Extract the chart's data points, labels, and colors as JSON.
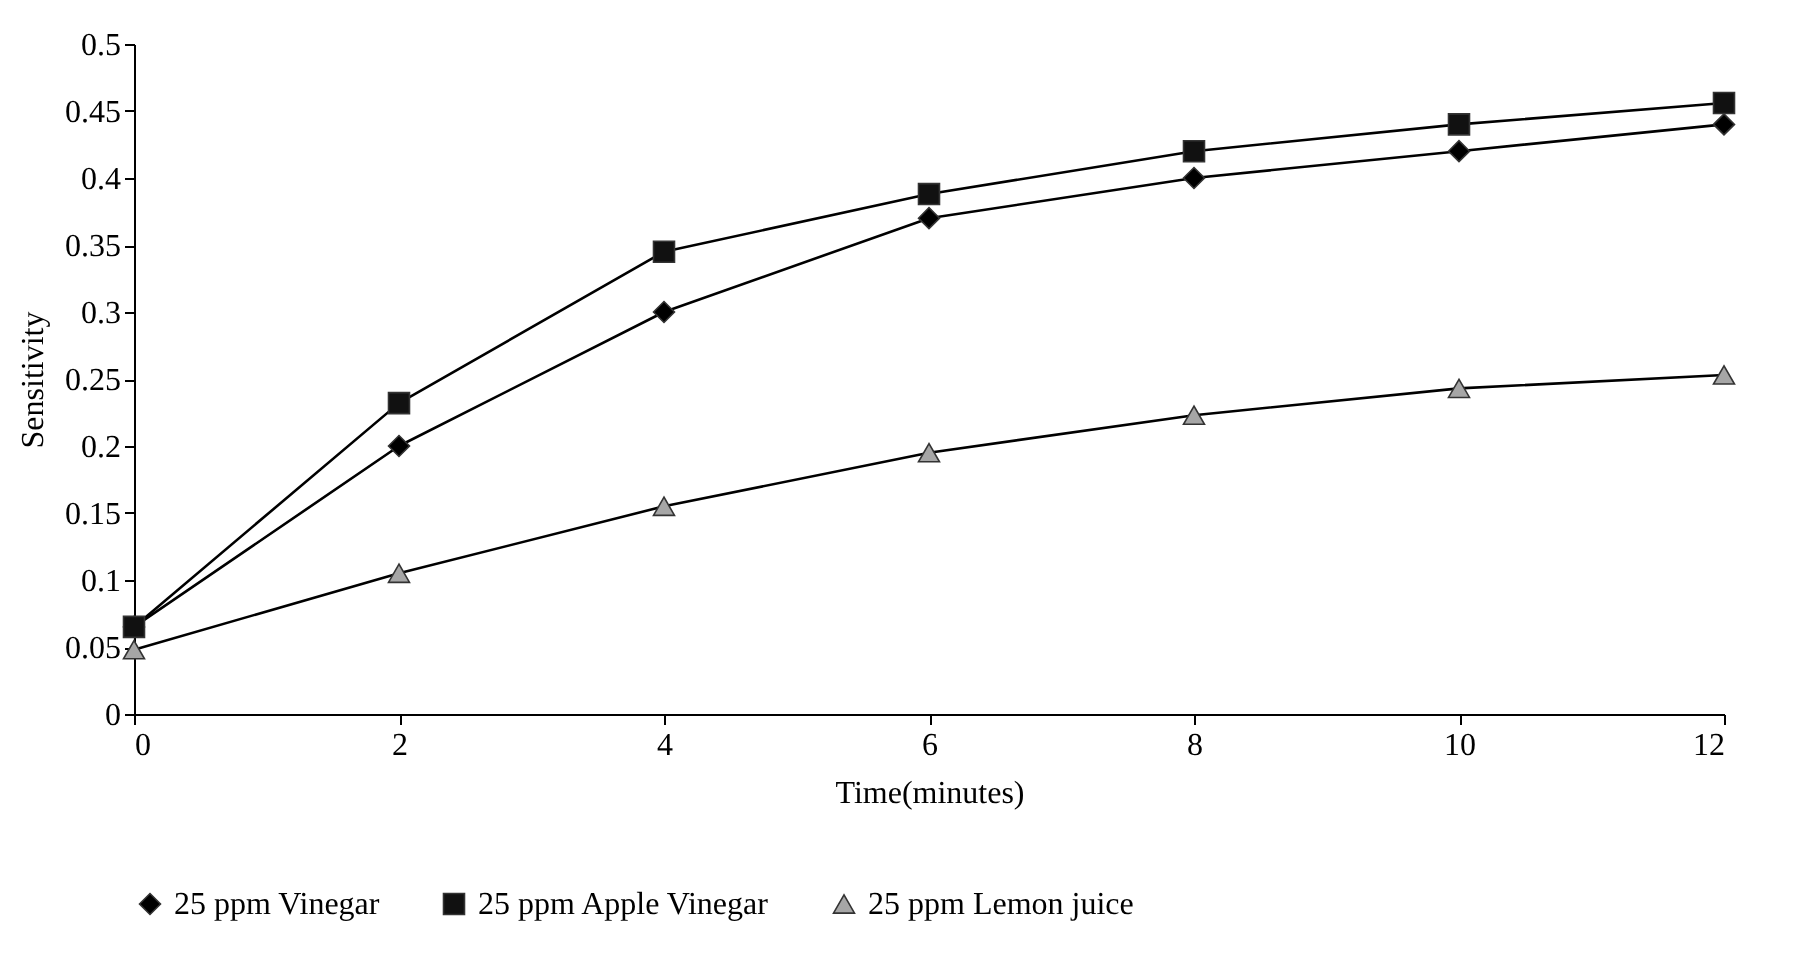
{
  "chart_data": {
    "type": "line",
    "xlabel": "Time(minutes)",
    "ylabel": "Sensitivity",
    "x": [
      0,
      2,
      4,
      6,
      8,
      10,
      12
    ],
    "series": [
      {
        "name": "25 ppm Vinegar",
        "color": "#000000",
        "marker": "diamond",
        "values": [
          0.065,
          0.2,
          0.3,
          0.37,
          0.4,
          0.42,
          0.44
        ]
      },
      {
        "name": "25 ppm Apple Vinegar",
        "color": "#111111",
        "marker": "square",
        "values": [
          0.065,
          0.232,
          0.345,
          0.388,
          0.42,
          0.44,
          0.456
        ]
      },
      {
        "name": "25 ppm Lemon juice",
        "color": "#a6a6a6",
        "marker": "triangle",
        "values": [
          0.048,
          0.105,
          0.155,
          0.195,
          0.223,
          0.243,
          0.253
        ]
      }
    ],
    "xlim": [
      0,
      12
    ],
    "xticks": [
      0,
      2,
      4,
      6,
      8,
      10,
      12
    ],
    "ylim": [
      0,
      0.5
    ],
    "yticks": [
      0,
      0.05,
      0.1,
      0.15,
      0.2,
      0.25,
      0.3,
      0.35,
      0.4,
      0.45,
      0.5
    ],
    "grid": false,
    "legend": "bottom",
    "line_style": "solid"
  }
}
